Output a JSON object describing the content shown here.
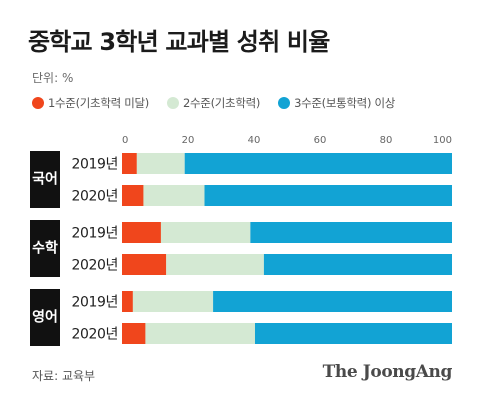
{
  "chart_data": {
    "type": "bar",
    "orientation": "horizontal",
    "stacked": true,
    "title": "중학교 3학년 교과별 성취 비율",
    "unit_label": "단위: %",
    "xlim": [
      0,
      100
    ],
    "xticks": [
      0,
      20,
      40,
      60,
      80,
      100
    ],
    "grid": false,
    "legend_position": "top",
    "groups": [
      {
        "subject": "국어",
        "rows": [
          {
            "year": "2019년",
            "values": [
              4.5,
              14.5,
              81.0
            ]
          },
          {
            "year": "2020년",
            "values": [
              6.5,
              18.5,
              75.0
            ]
          }
        ]
      },
      {
        "subject": "수학",
        "rows": [
          {
            "year": "2019년",
            "values": [
              11.8,
              27.1,
              61.1
            ]
          },
          {
            "year": "2020년",
            "values": [
              13.4,
              29.6,
              57.0
            ]
          }
        ]
      },
      {
        "subject": "영어",
        "rows": [
          {
            "year": "2019년",
            "values": [
              3.3,
              24.3,
              72.4
            ]
          },
          {
            "year": "2020년",
            "values": [
              7.1,
              33.2,
              59.7
            ]
          }
        ]
      }
    ],
    "series": [
      {
        "name": "1수준(기초학력 미달)",
        "color": "#f0461c"
      },
      {
        "name": "2수준(기초학력)",
        "color": "#d4e9d3"
      },
      {
        "name": "3수준(보통학력) 이상",
        "color": "#12a3d4"
      }
    ]
  },
  "footer": {
    "source": "자료: 교육부",
    "brand": "The JoongAng"
  },
  "colors": {
    "subject_label_bg": "#111111",
    "text": "#222222"
  }
}
